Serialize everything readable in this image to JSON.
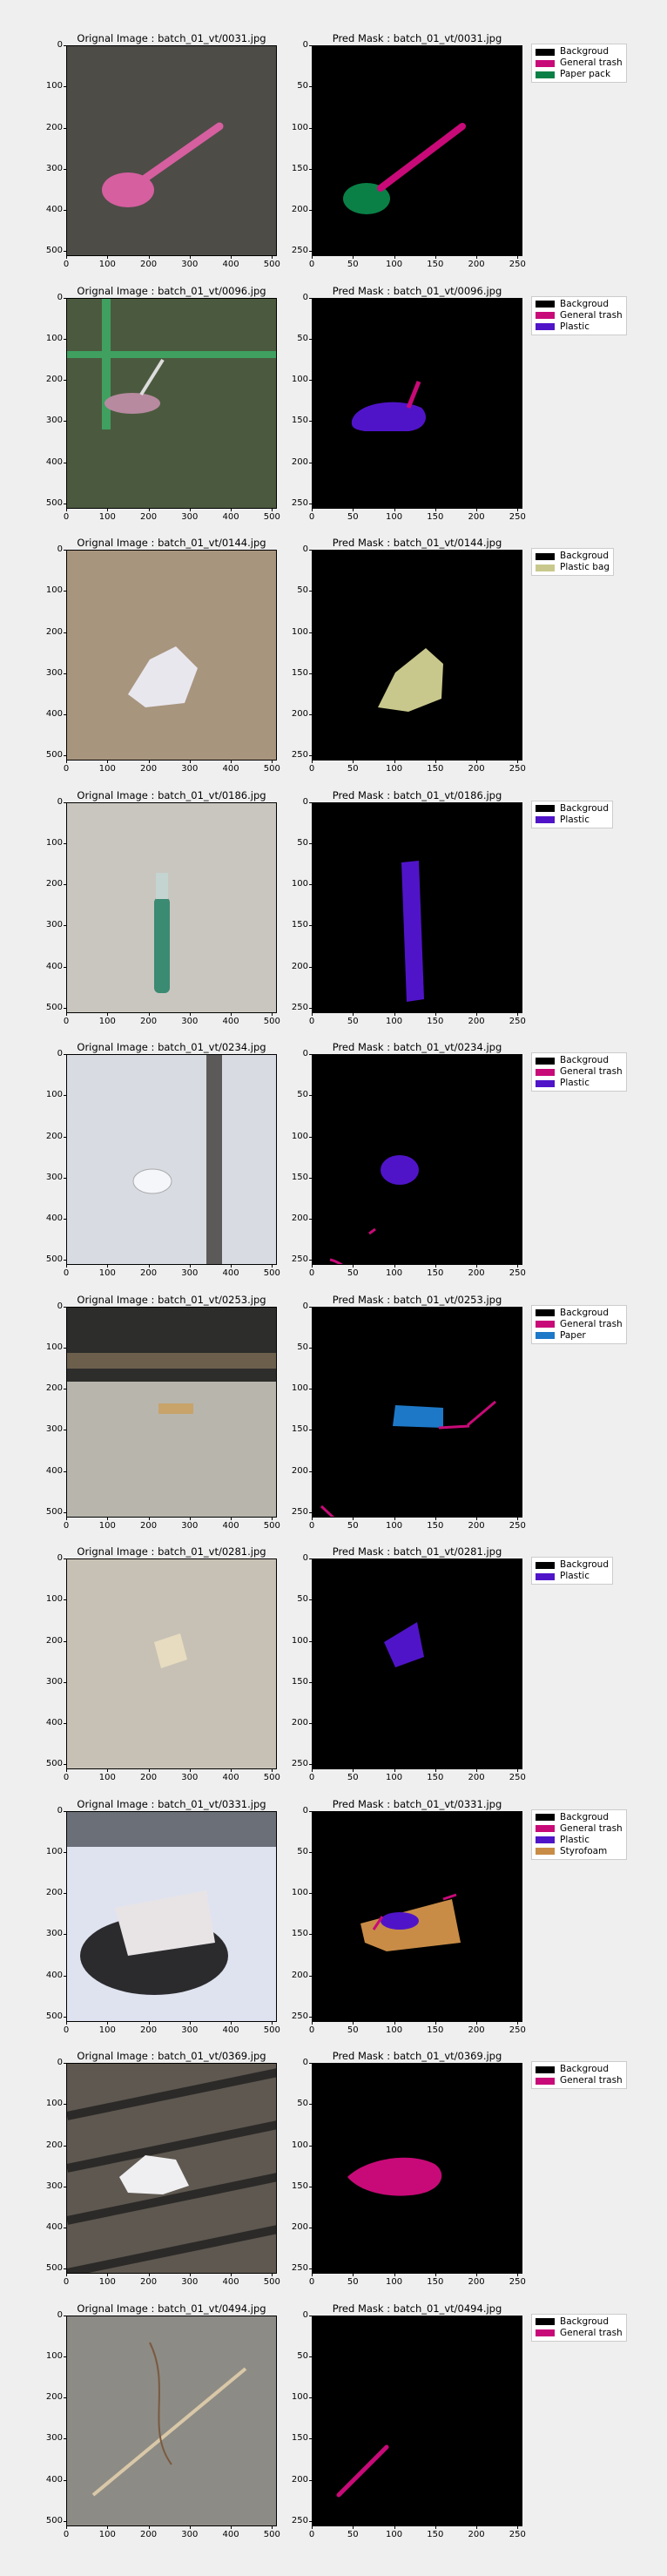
{
  "rows": [
    {
      "orig_title": "Orignal Image : batch_01_vt/0031.jpg",
      "mask_title": "Pred Mask : batch_01_vt/0031.jpg",
      "photo_bg": "#4e4c47",
      "legend": [
        {
          "label": "Backgroud",
          "color": "#000000"
        },
        {
          "label": "General trash",
          "color": "#c80a78"
        },
        {
          "label": "Paper pack",
          "color": "#0a8046"
        }
      ]
    },
    {
      "orig_title": "Orignal Image : batch_01_vt/0096.jpg",
      "mask_title": "Pred Mask : batch_01_vt/0096.jpg",
      "photo_bg": "#5a5f4e",
      "legend": [
        {
          "label": "Backgroud",
          "color": "#000000"
        },
        {
          "label": "General trash",
          "color": "#c80a78"
        },
        {
          "label": "Plastic",
          "color": "#5014c8"
        }
      ]
    },
    {
      "orig_title": "Orignal Image : batch_01_vt/0144.jpg",
      "mask_title": "Pred Mask : batch_01_vt/0144.jpg",
      "photo_bg": "#a8957e",
      "legend": [
        {
          "label": "Backgroud",
          "color": "#000000"
        },
        {
          "label": "Plastic bag",
          "color": "#c8c88c"
        }
      ]
    },
    {
      "orig_title": "Orignal Image : batch_01_vt/0186.jpg",
      "mask_title": "Pred Mask : batch_01_vt/0186.jpg",
      "photo_bg": "#c9c6c0",
      "legend": [
        {
          "label": "Backgroud",
          "color": "#000000"
        },
        {
          "label": "Plastic",
          "color": "#5014c8"
        }
      ]
    },
    {
      "orig_title": "Orignal Image : batch_01_vt/0234.jpg",
      "mask_title": "Pred Mask : batch_01_vt/0234.jpg",
      "photo_bg": "#d8dbe2",
      "legend": [
        {
          "label": "Backgroud",
          "color": "#000000"
        },
        {
          "label": "General trash",
          "color": "#c80a78"
        },
        {
          "label": "Plastic",
          "color": "#5014c8"
        }
      ]
    },
    {
      "orig_title": "Orignal Image : batch_01_vt/0253.jpg",
      "mask_title": "Pred Mask : batch_01_vt/0253.jpg",
      "photo_bg": "#b8b5ad",
      "legend": [
        {
          "label": "Backgroud",
          "color": "#000000"
        },
        {
          "label": "General trash",
          "color": "#c80a78"
        },
        {
          "label": "Paper",
          "color": "#1e78c8"
        }
      ]
    },
    {
      "orig_title": "Orignal Image : batch_01_vt/0281.jpg",
      "mask_title": "Pred Mask : batch_01_vt/0281.jpg",
      "photo_bg": "#c7c1b5",
      "legend": [
        {
          "label": "Backgroud",
          "color": "#000000"
        },
        {
          "label": "Plastic",
          "color": "#5014c8"
        }
      ]
    },
    {
      "orig_title": "Orignal Image : batch_01_vt/0331.jpg",
      "mask_title": "Pred Mask : batch_01_vt/0331.jpg",
      "photo_bg": "#dfe3ef",
      "legend": [
        {
          "label": "Backgroud",
          "color": "#000000"
        },
        {
          "label": "General trash",
          "color": "#c80a78"
        },
        {
          "label": "Plastic",
          "color": "#5014c8"
        },
        {
          "label": "Styrofoam",
          "color": "#c88c46"
        }
      ]
    },
    {
      "orig_title": "Orignal Image : batch_01_vt/0369.jpg",
      "mask_title": "Pred Mask : batch_01_vt/0369.jpg",
      "photo_bg": "#5e5850",
      "legend": [
        {
          "label": "Backgroud",
          "color": "#000000"
        },
        {
          "label": "General trash",
          "color": "#c80a78"
        }
      ]
    },
    {
      "orig_title": "Orignal Image : batch_01_vt/0494.jpg",
      "mask_title": "Pred Mask : batch_01_vt/0494.jpg",
      "photo_bg": "#8d8b85",
      "legend": [
        {
          "label": "Backgroud",
          "color": "#000000"
        },
        {
          "label": "General trash",
          "color": "#c80a78"
        }
      ]
    }
  ],
  "orig_ticks": [
    "0",
    "100",
    "200",
    "300",
    "400",
    "500"
  ],
  "mask_ticks": [
    "0",
    "50",
    "100",
    "150",
    "200",
    "250"
  ],
  "mask_bg": "#000000"
}
